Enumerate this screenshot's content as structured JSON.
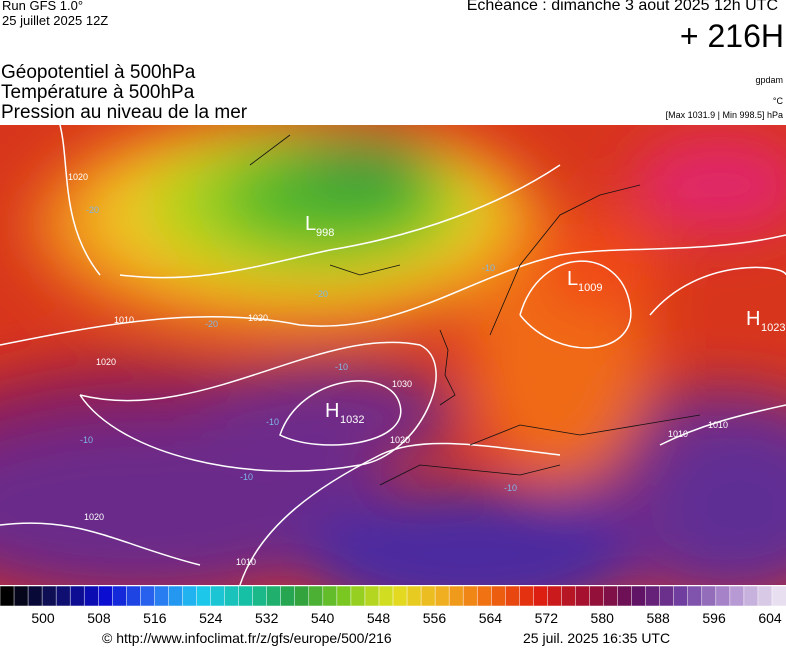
{
  "header": {
    "run": "Run GFS 1.0°",
    "run_date": "25 juillet 2025 12Z",
    "valid": "Echéance : dimanche 3 aout 2025 12h UTC",
    "lead": "+ 216H"
  },
  "layers": {
    "geopotential": "Géopotentiel à 500hPa",
    "temperature": "Température à 500hPa",
    "pressure": "Pression au niveau de la mer"
  },
  "units": {
    "geopotential": "gpdam",
    "temperature": "°C",
    "pressure": "[Max 1031.9 | Min 998.5] hPa"
  },
  "centers": [
    {
      "kind": "L",
      "value": "998"
    },
    {
      "kind": "L",
      "value": "1009"
    },
    {
      "kind": "H",
      "value": "1032"
    },
    {
      "kind": "H",
      "value": "1023"
    }
  ],
  "isobar_labels": [
    "1020",
    "1010",
    "1020",
    "1020",
    "1030",
    "1020",
    "1020",
    "1010",
    "1010",
    "1010"
  ],
  "temperature_labels": [
    "-20",
    "-20",
    "-20",
    "-10",
    "-10",
    "-10",
    "-10",
    "-10",
    "-10"
  ],
  "colorbar": {
    "labels": [
      "500",
      "508",
      "516",
      "524",
      "532",
      "540",
      "548",
      "556",
      "564",
      "572",
      "580",
      "588",
      "596",
      "604"
    ]
  },
  "footer": {
    "url": "© http://www.infoclimat.fr/z/gfs/europe/500/216",
    "generated": "25 juil. 2025 16:35 UTC"
  }
}
